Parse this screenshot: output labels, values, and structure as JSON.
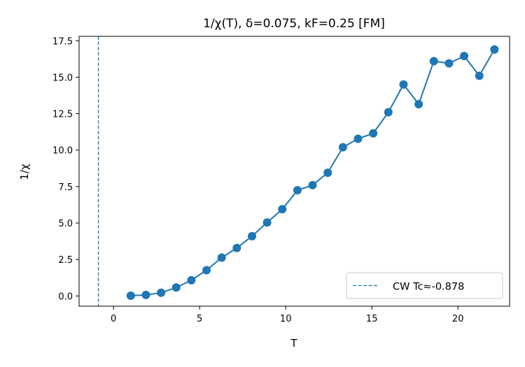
{
  "chart_data": {
    "type": "line",
    "title": "1/χ(T), δ=0.075, kF=0.25  [FM]",
    "xlabel": "T",
    "ylabel": "1/χ",
    "xlim": [
      -2,
      23
    ],
    "ylim": [
      -0.7,
      17.8
    ],
    "xticks": [
      0,
      5,
      10,
      15,
      20
    ],
    "xtick_labels": [
      "0",
      "5",
      "10",
      "15",
      "20"
    ],
    "yticks": [
      0,
      2.5,
      5,
      7.5,
      10,
      12.5,
      15,
      17.5
    ],
    "ytick_labels": [
      "0.0",
      "2.5",
      "5.0",
      "7.5",
      "10.0",
      "12.5",
      "15.0",
      "17.5"
    ],
    "grid": false,
    "legend_position": "lower-right",
    "series": [
      {
        "color": "#1f77b4",
        "marker": "circle",
        "x": [
          1.0,
          1.88,
          2.76,
          3.64,
          4.52,
          5.4,
          6.28,
          7.16,
          8.04,
          8.92,
          9.8,
          10.68,
          11.56,
          12.44,
          13.32,
          14.2,
          15.08,
          15.96,
          16.84,
          17.72,
          18.6,
          19.48,
          20.36,
          21.24,
          22.12
        ],
        "y": [
          0.02,
          0.07,
          0.22,
          0.58,
          1.08,
          1.77,
          2.63,
          3.29,
          4.1,
          5.04,
          5.95,
          7.25,
          7.6,
          8.45,
          10.2,
          10.78,
          11.15,
          12.6,
          14.5,
          13.15,
          16.1,
          15.95,
          16.45,
          15.1,
          16.9
        ]
      },
      {
        "name": "CW Tc≈-0.878",
        "type": "vline",
        "x": -0.878,
        "color": "#1f77b4",
        "linestyle": "dashed"
      }
    ]
  }
}
